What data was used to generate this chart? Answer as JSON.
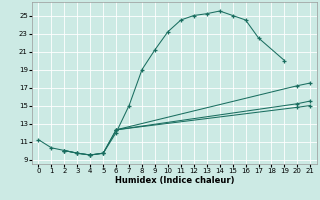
{
  "xlabel": "Humidex (Indice chaleur)",
  "bg_color": "#cceae4",
  "grid_color": "#ffffff",
  "line_color": "#1a6e60",
  "xlim": [
    -0.5,
    21.5
  ],
  "ylim": [
    8.5,
    26.5
  ],
  "yticks": [
    9,
    11,
    13,
    15,
    17,
    19,
    21,
    23,
    25
  ],
  "xticks": [
    0,
    1,
    2,
    3,
    4,
    5,
    6,
    7,
    8,
    9,
    10,
    11,
    12,
    13,
    14,
    15,
    16,
    17,
    18,
    19,
    20,
    21
  ],
  "line1_x": [
    0,
    1,
    2,
    3,
    4,
    5,
    6,
    7,
    8,
    9,
    10,
    11,
    12,
    13,
    14,
    15,
    16,
    17,
    19
  ],
  "line1_y": [
    11.2,
    10.3,
    10.0,
    9.7,
    9.5,
    9.7,
    12.0,
    15.0,
    19.0,
    21.2,
    23.2,
    24.5,
    25.0,
    25.2,
    25.5,
    25.0,
    24.5,
    22.5,
    20.0
  ],
  "line2_x": [
    2,
    3,
    4,
    5,
    6,
    20,
    21
  ],
  "line2_y": [
    10.0,
    9.7,
    9.5,
    9.7,
    12.3,
    17.2,
    17.5
  ],
  "line3_x": [
    2,
    3,
    4,
    5,
    6,
    20,
    21
  ],
  "line3_y": [
    10.0,
    9.7,
    9.5,
    9.7,
    12.3,
    15.2,
    15.5
  ],
  "line4_x": [
    6,
    20,
    21
  ],
  "line4_y": [
    12.3,
    14.8,
    15.0
  ],
  "xlabel_fontsize": 6,
  "tick_fontsize": 5
}
